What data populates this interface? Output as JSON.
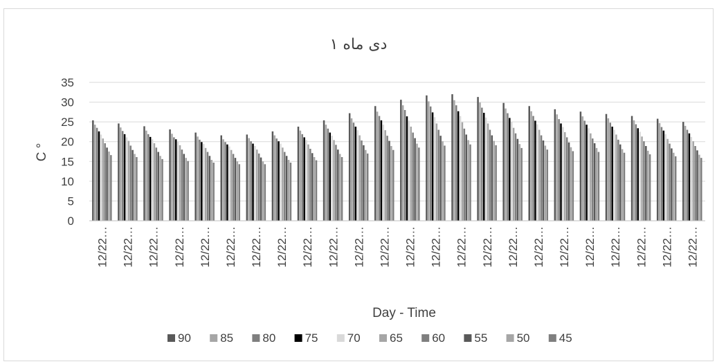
{
  "chart_data": {
    "type": "bar",
    "title": "۱ دی ماه",
    "xlabel": "Day - Time",
    "ylabel": "C °",
    "ylim": [
      0,
      35
    ],
    "yticks": [
      "0",
      "5",
      "10",
      "15",
      "20",
      "25",
      "30",
      "35"
    ],
    "grid": true,
    "legend_position": "bottom",
    "categories": [
      "12/22…",
      "12/22…",
      "12/22…",
      "12/22…",
      "12/22…",
      "12/22…",
      "12/22…",
      "12/22…",
      "12/22…",
      "12/22…",
      "12/22…",
      "12/22…",
      "12/22…",
      "12/22…",
      "12/22…",
      "12/22…",
      "12/22…",
      "12/22…",
      "12/22…",
      "12/22…",
      "12/22…",
      "12/22…",
      "12/22…",
      "12/22…"
    ],
    "series": [
      {
        "name": "90",
        "color": "#595959",
        "values": [
          25.4,
          24.6,
          23.9,
          23.1,
          22.3,
          21.6,
          21.8,
          22.6,
          23.8,
          25.4,
          27.2,
          29.0,
          30.6,
          31.7,
          32.0,
          31.3,
          29.8,
          29.0,
          28.2,
          27.6,
          27.0,
          26.5,
          25.8,
          25.0
        ]
      },
      {
        "name": "85",
        "color": "#a6a6a6",
        "values": [
          24.3,
          23.6,
          22.8,
          22.0,
          21.3,
          20.6,
          20.9,
          21.6,
          22.8,
          24.3,
          25.9,
          27.6,
          29.2,
          30.2,
          30.5,
          29.9,
          28.4,
          27.7,
          26.9,
          26.4,
          25.9,
          25.4,
          24.7,
          24.0
        ]
      },
      {
        "name": "80",
        "color": "#7f7f7f",
        "values": [
          23.5,
          22.7,
          21.9,
          21.1,
          20.5,
          19.9,
          20.1,
          20.8,
          21.9,
          23.3,
          24.8,
          26.5,
          28.0,
          28.9,
          29.2,
          28.6,
          27.2,
          26.5,
          25.7,
          25.3,
          24.8,
          24.4,
          23.7,
          23.0
        ]
      },
      {
        "name": "75",
        "color": "#000000",
        "values": [
          22.6,
          21.9,
          21.2,
          20.6,
          19.9,
          19.3,
          19.5,
          20.1,
          21.1,
          22.3,
          23.8,
          25.4,
          26.4,
          27.4,
          27.7,
          27.3,
          26.0,
          25.3,
          24.6,
          24.3,
          23.8,
          23.4,
          22.8,
          22.1
        ]
      },
      {
        "name": "70",
        "color": "#d9d9d9",
        "values": [
          21.8,
          21.1,
          20.6,
          20.0,
          19.4,
          18.8,
          18.9,
          19.5,
          20.4,
          21.5,
          22.9,
          24.3,
          25.3,
          26.2,
          26.5,
          26.1,
          25.0,
          24.4,
          23.7,
          23.4,
          23.0,
          22.5,
          21.9,
          21.2
        ]
      },
      {
        "name": "65",
        "color": "#a6a6a6",
        "values": [
          20.8,
          20.2,
          19.6,
          19.1,
          18.4,
          17.9,
          18.0,
          18.5,
          19.3,
          20.4,
          21.6,
          22.9,
          23.8,
          24.6,
          24.9,
          24.6,
          23.5,
          23.0,
          22.4,
          22.1,
          21.8,
          21.3,
          20.7,
          20.1
        ]
      },
      {
        "name": "60",
        "color": "#7f7f7f",
        "values": [
          19.6,
          19.0,
          18.5,
          18.0,
          17.4,
          16.9,
          17.0,
          17.4,
          18.2,
          19.2,
          20.3,
          21.5,
          22.3,
          23.0,
          23.3,
          23.0,
          22.1,
          21.6,
          21.1,
          20.8,
          20.5,
          20.1,
          19.5,
          18.9
        ]
      },
      {
        "name": "55",
        "color": "#595959",
        "values": [
          18.5,
          17.9,
          17.4,
          16.9,
          16.4,
          15.9,
          16.0,
          16.4,
          17.1,
          18.0,
          19.1,
          20.2,
          20.9,
          21.5,
          21.8,
          21.6,
          20.7,
          20.3,
          19.8,
          19.6,
          19.3,
          18.9,
          18.3,
          17.8
        ]
      },
      {
        "name": "50",
        "color": "#a6a6a6",
        "values": [
          17.5,
          16.9,
          16.4,
          15.9,
          15.4,
          15.0,
          15.0,
          15.4,
          16.1,
          16.9,
          17.9,
          18.9,
          19.5,
          20.1,
          20.4,
          20.2,
          19.4,
          19.0,
          18.6,
          18.4,
          18.1,
          17.7,
          17.2,
          16.7
        ]
      },
      {
        "name": "45",
        "color": "#7f7f7f",
        "values": [
          16.6,
          16.1,
          15.6,
          15.1,
          14.7,
          14.3,
          14.3,
          14.7,
          15.3,
          16.1,
          17.0,
          17.9,
          18.5,
          19.0,
          19.3,
          19.1,
          18.4,
          18.0,
          17.6,
          17.4,
          17.2,
          16.8,
          16.3,
          15.9
        ]
      }
    ]
  }
}
